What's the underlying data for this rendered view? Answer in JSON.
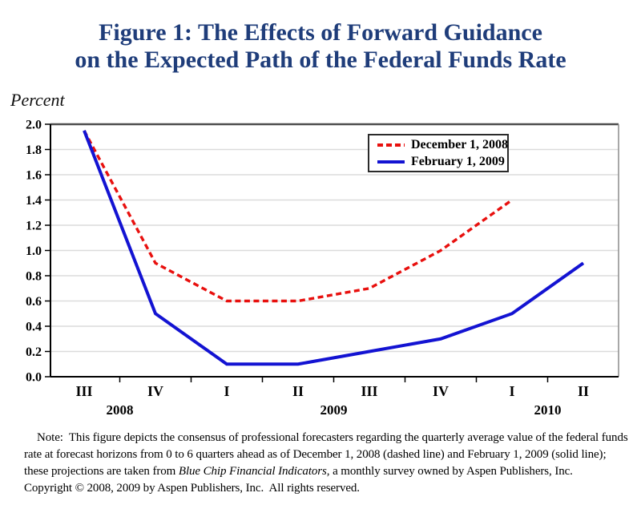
{
  "title": {
    "line1": "Figure 1: The Effects of Forward Guidance",
    "line2": "on the Expected Path of the Federal Funds Rate"
  },
  "colors": {
    "title_navy": "#1f3d7a",
    "grid_gray": "#dcdcdc",
    "axis_black": "#000000",
    "top_border": "#4d4d4d",
    "right_border": "#8c8c8c"
  },
  "chart_data": {
    "type": "line",
    "title": "Figure 1: The Effects of Forward Guidance on the Expected Path of the Federal Funds Rate",
    "ylabel": "Percent",
    "xlabel": "",
    "ylim": [
      0.0,
      2.0
    ],
    "ytick_values": [
      0.0,
      0.2,
      0.4,
      0.6,
      0.8,
      1.0,
      1.2,
      1.4,
      1.6,
      1.8,
      2.0
    ],
    "ytick_labels": [
      "0.0",
      "0.2",
      "0.4",
      "0.6",
      "0.8",
      "1.0",
      "1.2",
      "1.4",
      "1.6",
      "1.8",
      "2.0"
    ],
    "grid": true,
    "legend_position": "top-right-inside",
    "categories": [
      "2008 Q3",
      "2008 Q4",
      "2009 Q1",
      "2009 Q2",
      "2009 Q3",
      "2009 Q4",
      "2010 Q1",
      "2010 Q2"
    ],
    "x_tick_labels": [
      "III",
      "IV",
      "I",
      "II",
      "III",
      "IV",
      "I",
      "II"
    ],
    "years": [
      {
        "label": "2008",
        "from": 0,
        "to": 1
      },
      {
        "label": "2009",
        "from": 2,
        "to": 5
      },
      {
        "label": "2010",
        "from": 6,
        "to": 7
      }
    ],
    "series": [
      {
        "name": "December 1, 2008",
        "color": "#e8100e",
        "dash": true,
        "values": [
          1.95,
          0.9,
          0.6,
          0.6,
          0.7,
          1.0,
          1.4,
          null
        ]
      },
      {
        "name": "February 1, 2009",
        "color": "#1313d2",
        "dash": false,
        "values": [
          1.95,
          0.5,
          0.1,
          0.1,
          0.2,
          0.3,
          0.5,
          0.9
        ]
      }
    ]
  },
  "note": {
    "line1": "Note:  This figure depicts the consensus of professional forecasters regarding the quarterly average value of the federal funds",
    "line2": "rate at forecast horizons from 0 to 6 quarters ahead as of December 1, 2008 (dashed line) and February 1, 2009 (solid line);",
    "line3_pre": "these projections are taken from ",
    "line3_italic": "Blue Chip Financial Indicators",
    "line3_post": ", a monthly survey owned by Aspen Publishers, Inc.",
    "line4": "Copyright © 2008, 2009 by Aspen Publishers, Inc.  All rights reserved."
  }
}
